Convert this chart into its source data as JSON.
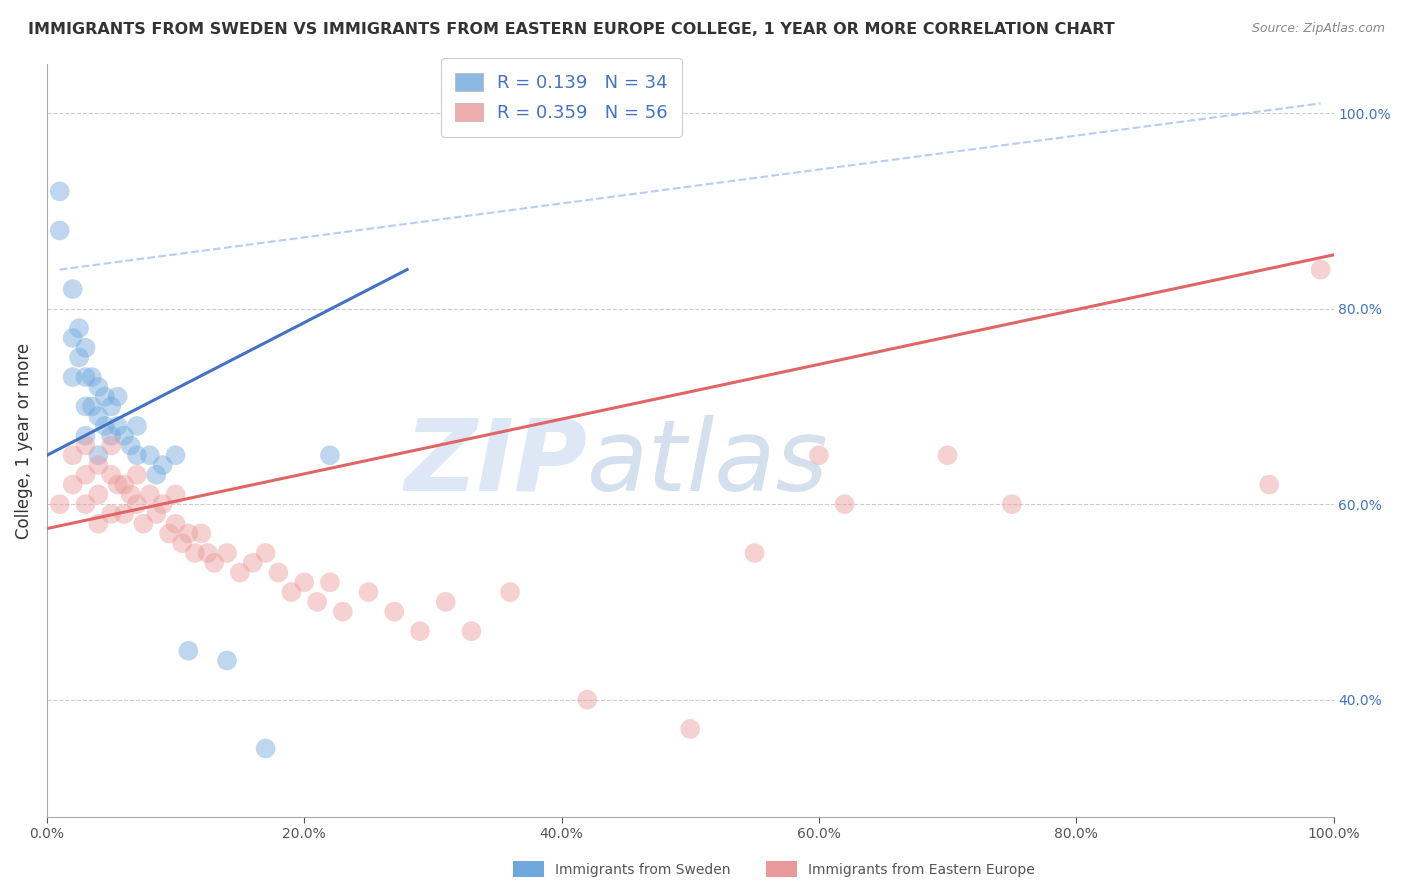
{
  "title": "IMMIGRANTS FROM SWEDEN VS IMMIGRANTS FROM EASTERN EUROPE COLLEGE, 1 YEAR OR MORE CORRELATION CHART",
  "source": "Source: ZipAtlas.com",
  "ylabel": "College, 1 year or more",
  "legend_label_1": "Immigrants from Sweden",
  "legend_label_2": "Immigrants from Eastern Europe",
  "R1": 0.139,
  "N1": 34,
  "R2": 0.359,
  "N2": 56,
  "color_blue": "#6fa8dc",
  "color_pink": "#ea9999",
  "color_blue_line": "#4472c4",
  "color_pink_line": "#e06666",
  "color_dashed": "#a4c2f4",
  "xlim": [
    0.0,
    1.0
  ],
  "ylim": [
    0.28,
    1.05
  ],
  "yticks_right": [
    0.4,
    0.6,
    0.8,
    1.0
  ],
  "ytick_labels_right": [
    "40.0%",
    "60.0%",
    "80.0%",
    "100.0%"
  ],
  "xticks": [
    0.0,
    0.2,
    0.4,
    0.6,
    0.8,
    1.0
  ],
  "xtick_labels": [
    "0.0%",
    "20.0%",
    "40.0%",
    "60.0%",
    "80.0%",
    "100.0%"
  ],
  "blue_x": [
    0.01,
    0.01,
    0.02,
    0.02,
    0.02,
    0.025,
    0.025,
    0.03,
    0.03,
    0.03,
    0.03,
    0.035,
    0.035,
    0.04,
    0.04,
    0.04,
    0.045,
    0.045,
    0.05,
    0.05,
    0.055,
    0.055,
    0.06,
    0.065,
    0.07,
    0.07,
    0.08,
    0.085,
    0.09,
    0.1,
    0.11,
    0.14,
    0.17,
    0.22
  ],
  "blue_y": [
    0.92,
    0.88,
    0.82,
    0.77,
    0.73,
    0.78,
    0.75,
    0.76,
    0.73,
    0.7,
    0.67,
    0.73,
    0.7,
    0.72,
    0.69,
    0.65,
    0.71,
    0.68,
    0.7,
    0.67,
    0.71,
    0.68,
    0.67,
    0.66,
    0.68,
    0.65,
    0.65,
    0.63,
    0.64,
    0.65,
    0.45,
    0.44,
    0.35,
    0.65
  ],
  "pink_x": [
    0.01,
    0.02,
    0.02,
    0.03,
    0.03,
    0.03,
    0.04,
    0.04,
    0.04,
    0.05,
    0.05,
    0.05,
    0.055,
    0.06,
    0.06,
    0.065,
    0.07,
    0.07,
    0.075,
    0.08,
    0.085,
    0.09,
    0.095,
    0.1,
    0.1,
    0.105,
    0.11,
    0.115,
    0.12,
    0.125,
    0.13,
    0.14,
    0.15,
    0.16,
    0.17,
    0.18,
    0.19,
    0.2,
    0.21,
    0.22,
    0.23,
    0.25,
    0.27,
    0.29,
    0.31,
    0.33,
    0.36,
    0.42,
    0.5,
    0.55,
    0.6,
    0.62,
    0.7,
    0.75,
    0.95,
    0.99
  ],
  "pink_y": [
    0.6,
    0.65,
    0.62,
    0.66,
    0.63,
    0.6,
    0.64,
    0.61,
    0.58,
    0.66,
    0.63,
    0.59,
    0.62,
    0.62,
    0.59,
    0.61,
    0.63,
    0.6,
    0.58,
    0.61,
    0.59,
    0.6,
    0.57,
    0.61,
    0.58,
    0.56,
    0.57,
    0.55,
    0.57,
    0.55,
    0.54,
    0.55,
    0.53,
    0.54,
    0.55,
    0.53,
    0.51,
    0.52,
    0.5,
    0.52,
    0.49,
    0.51,
    0.49,
    0.47,
    0.5,
    0.47,
    0.51,
    0.4,
    0.37,
    0.55,
    0.65,
    0.6,
    0.65,
    0.6,
    0.62,
    0.84
  ],
  "blue_line_x": [
    0.0,
    0.28
  ],
  "blue_line_y": [
    0.65,
    0.84
  ],
  "pink_line_x": [
    0.0,
    1.0
  ],
  "pink_line_y": [
    0.575,
    0.855
  ],
  "dashed_line_x": [
    0.01,
    0.99
  ],
  "dashed_line_y": [
    0.84,
    1.01
  ],
  "watermark_zip": "ZIP",
  "watermark_atlas": "atlas",
  "watermark_color": "#c8d8f0",
  "watermark_atlas_color": "#b0c8e0"
}
